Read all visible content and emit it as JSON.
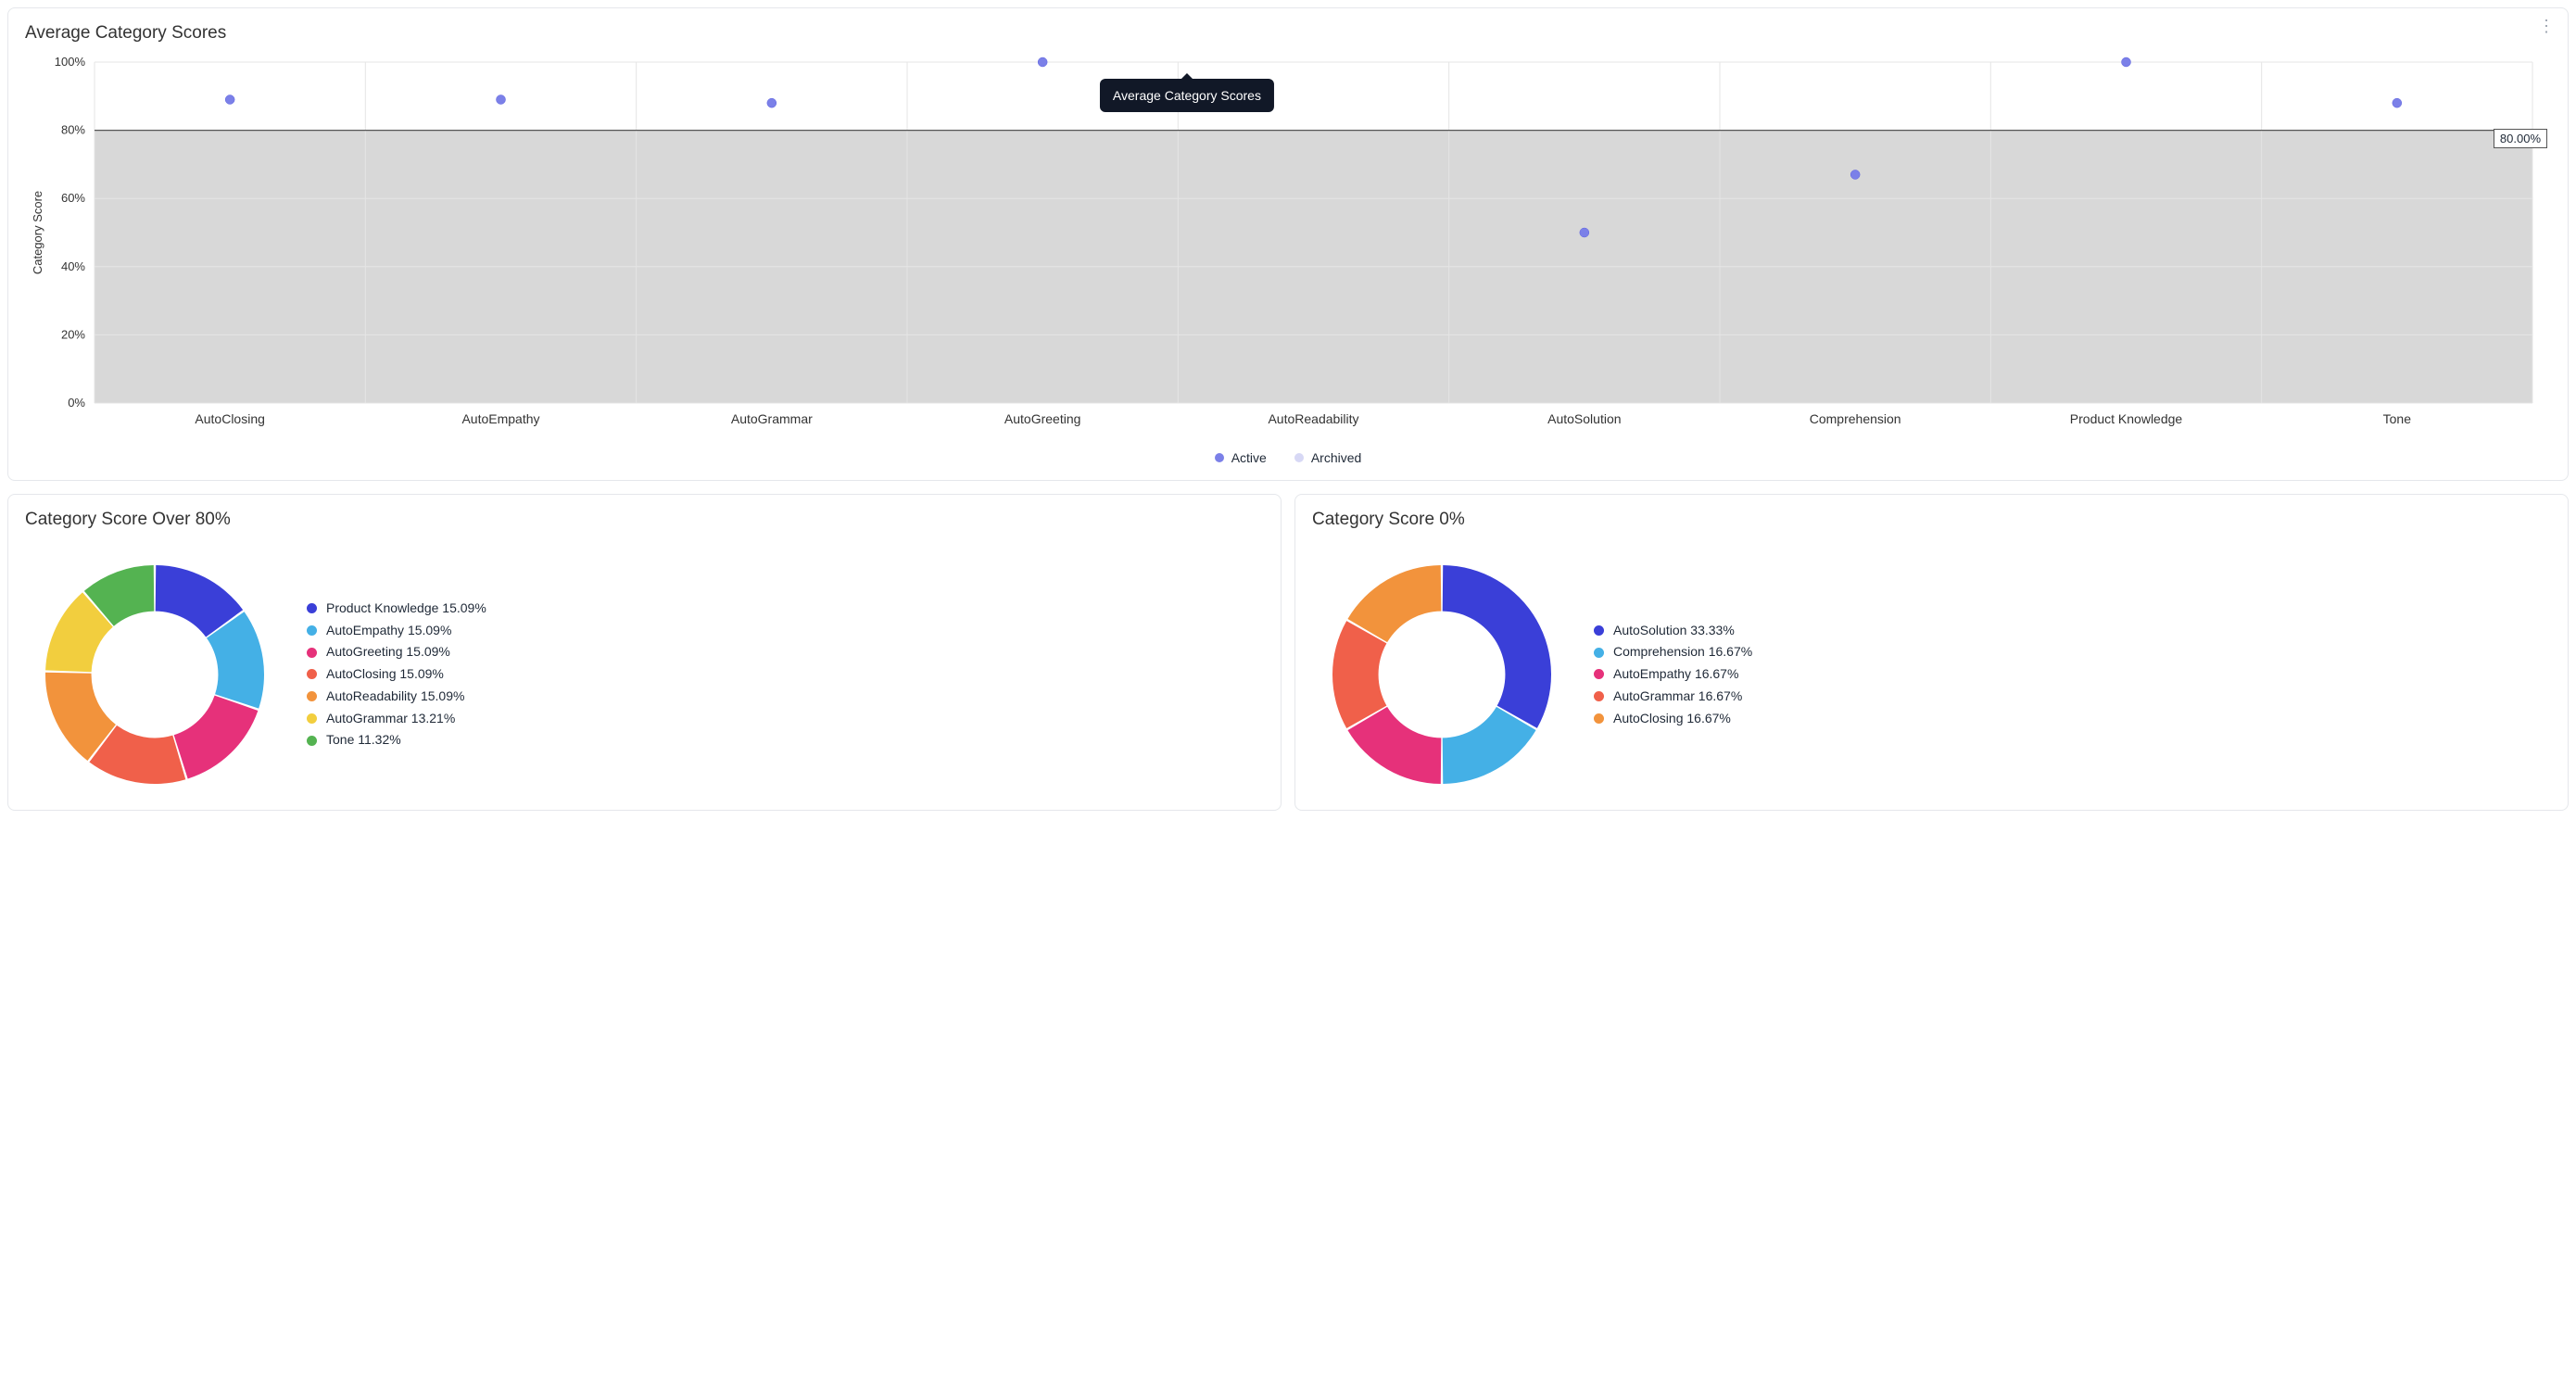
{
  "scatter": {
    "title": "Average Category Scores",
    "tooltip": "Average Category Scores",
    "y_label": "Category Score",
    "y_ticks": [
      0,
      20,
      40,
      60,
      80,
      100
    ],
    "y_tick_suffix": "%",
    "threshold": 80,
    "threshold_label": "80.00%",
    "shaded_region": {
      "from": 0,
      "to": 80,
      "color": "#d8d8d8"
    },
    "grid_color": "#e5e5e5",
    "background_color": "#ffffff",
    "marker_color_active": "#7b80e8",
    "marker_color_archived": "#d7d8f5",
    "marker_radius": 5,
    "categories": [
      {
        "label": "AutoClosing",
        "value": 89
      },
      {
        "label": "AutoEmpathy",
        "value": 89
      },
      {
        "label": "AutoGrammar",
        "value": 88
      },
      {
        "label": "AutoGreeting",
        "value": 100
      },
      {
        "label": "AutoReadability",
        "value": null
      },
      {
        "label": "AutoSolution",
        "value": 50
      },
      {
        "label": "Comprehension",
        "value": 67
      },
      {
        "label": "Product Knowledge",
        "value": 100
      },
      {
        "label": "Tone",
        "value": 88
      }
    ],
    "legend": [
      {
        "label": "Active",
        "color": "#7b80e8"
      },
      {
        "label": "Archived",
        "color": "#d7d8f5"
      }
    ]
  },
  "donut_left": {
    "title": "Category Score Over 80%",
    "inner_radius_ratio": 0.58,
    "segments": [
      {
        "label": "Product Knowledge",
        "pct": 15.09,
        "color": "#3a3fd8"
      },
      {
        "label": "AutoEmpathy",
        "pct": 15.09,
        "color": "#44b0e6"
      },
      {
        "label": "AutoGreeting",
        "pct": 15.09,
        "color": "#e6317a"
      },
      {
        "label": "AutoClosing",
        "pct": 15.09,
        "color": "#f0604a"
      },
      {
        "label": "AutoReadability",
        "pct": 15.09,
        "color": "#f2933c"
      },
      {
        "label": "AutoGrammar",
        "pct": 13.21,
        "color": "#f2ce3e"
      },
      {
        "label": "Tone",
        "pct": 11.32,
        "color": "#54b351"
      }
    ]
  },
  "donut_right": {
    "title": "Category Score 0%",
    "inner_radius_ratio": 0.58,
    "segments": [
      {
        "label": "AutoSolution",
        "pct": 33.33,
        "color": "#3a3fd8"
      },
      {
        "label": "Comprehension",
        "pct": 16.67,
        "color": "#44b0e6"
      },
      {
        "label": "AutoEmpathy",
        "pct": 16.67,
        "color": "#e6317a"
      },
      {
        "label": "AutoGrammar",
        "pct": 16.67,
        "color": "#f0604a"
      },
      {
        "label": "AutoClosing",
        "pct": 16.67,
        "color": "#f2933c"
      }
    ]
  }
}
